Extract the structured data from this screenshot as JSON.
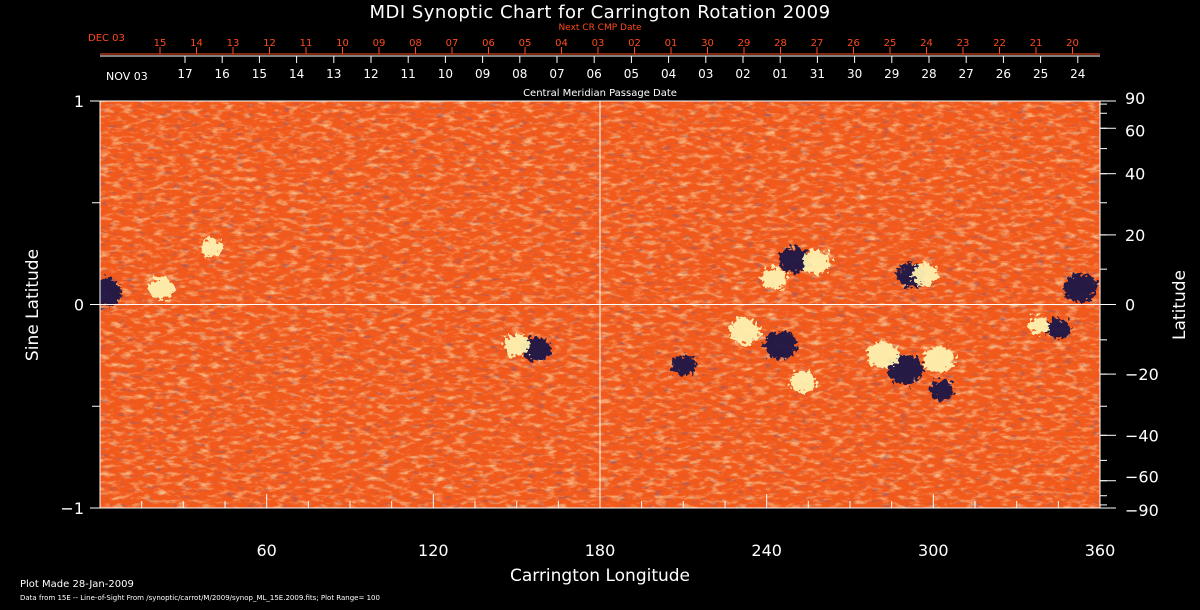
{
  "chart_data": {
    "type": "heatmap",
    "title": "MDI Synoptic Chart for Carrington Rotation 2009",
    "top_axis": {
      "caption": "Next CR CMP Date",
      "start_label": "DEC 03",
      "labels": [
        "15",
        "14",
        "13",
        "12",
        "11",
        "10",
        "09",
        "08",
        "07",
        "06",
        "05",
        "04",
        "03",
        "02",
        "01",
        "30",
        "29",
        "28",
        "27",
        "26",
        "25",
        "24",
        "23",
        "22",
        "21",
        "20"
      ],
      "color": "#ff4a1c"
    },
    "cmp_axis": {
      "caption": "Central Meridian Passage Date",
      "start_label": "NOV 03",
      "labels": [
        "17",
        "16",
        "15",
        "14",
        "13",
        "12",
        "11",
        "10",
        "09",
        "08",
        "07",
        "06",
        "05",
        "04",
        "03",
        "02",
        "01",
        "31",
        "30",
        "29",
        "28",
        "27",
        "26",
        "25",
        "24"
      ]
    },
    "xlabel": "Carrington Longitude",
    "xlim": [
      0,
      360
    ],
    "x_ticks": [
      60,
      120,
      180,
      240,
      300,
      360
    ],
    "ylabel_left": "Sine Latitude",
    "ylim_left": [
      -1,
      1
    ],
    "y_ticks_left": [
      {
        "value": 1,
        "label": "1"
      },
      {
        "value": 0,
        "label": "0"
      },
      {
        "value": -1,
        "label": "−1"
      }
    ],
    "ylabel_right": "Latitude",
    "y_ticks_right": [
      90,
      60,
      40,
      20,
      0,
      -20,
      -40,
      -60,
      -90
    ],
    "y_ticks_right_labels": [
      "90",
      "60",
      "40",
      "20",
      "0",
      "−20",
      "−40",
      "−60",
      "−90"
    ],
    "background_color": "#f25a1c",
    "positive_color": "#fff2b0",
    "negative_color": "#1a1446",
    "grid_lines": {
      "longitude": 180,
      "sine_latitude": 0
    },
    "active_regions": [
      {
        "lon": 2,
        "sinlat": 0.06,
        "polarity": "negative",
        "strength": 0.9
      },
      {
        "lon": 22,
        "sinlat": 0.08,
        "polarity": "positive",
        "strength": 0.6
      },
      {
        "lon": 40,
        "sinlat": 0.28,
        "polarity": "positive",
        "strength": 0.4
      },
      {
        "lon": 157,
        "sinlat": -0.22,
        "polarity": "negative",
        "strength": 0.7
      },
      {
        "lon": 150,
        "sinlat": -0.2,
        "polarity": "positive",
        "strength": 0.6
      },
      {
        "lon": 232,
        "sinlat": -0.13,
        "polarity": "positive",
        "strength": 0.8
      },
      {
        "lon": 245,
        "sinlat": -0.2,
        "polarity": "negative",
        "strength": 0.9
      },
      {
        "lon": 253,
        "sinlat": -0.38,
        "polarity": "positive",
        "strength": 0.6
      },
      {
        "lon": 250,
        "sinlat": 0.22,
        "polarity": "negative",
        "strength": 0.8
      },
      {
        "lon": 243,
        "sinlat": 0.13,
        "polarity": "positive",
        "strength": 0.6
      },
      {
        "lon": 258,
        "sinlat": 0.21,
        "polarity": "positive",
        "strength": 0.7
      },
      {
        "lon": 290,
        "sinlat": -0.32,
        "polarity": "negative",
        "strength": 1.0
      },
      {
        "lon": 282,
        "sinlat": -0.25,
        "polarity": "positive",
        "strength": 0.8
      },
      {
        "lon": 302,
        "sinlat": -0.27,
        "polarity": "positive",
        "strength": 0.8
      },
      {
        "lon": 292,
        "sinlat": 0.14,
        "polarity": "negative",
        "strength": 0.7
      },
      {
        "lon": 297,
        "sinlat": 0.15,
        "polarity": "positive",
        "strength": 0.6
      },
      {
        "lon": 353,
        "sinlat": 0.08,
        "polarity": "negative",
        "strength": 0.9
      },
      {
        "lon": 345,
        "sinlat": -0.12,
        "polarity": "negative",
        "strength": 0.5
      },
      {
        "lon": 338,
        "sinlat": -0.1,
        "polarity": "positive",
        "strength": 0.4
      },
      {
        "lon": 210,
        "sinlat": -0.3,
        "polarity": "negative",
        "strength": 0.5
      },
      {
        "lon": 303,
        "sinlat": -0.42,
        "polarity": "negative",
        "strength": 0.5
      }
    ]
  },
  "footer": {
    "plot_made": "Plot Made 28-Jan-2009",
    "data_source": "Data from 15E -- Line-of-Sight From /synoptic/carrot/M/2009/synop_ML_15E.2009.fits; Plot Range= 100"
  }
}
